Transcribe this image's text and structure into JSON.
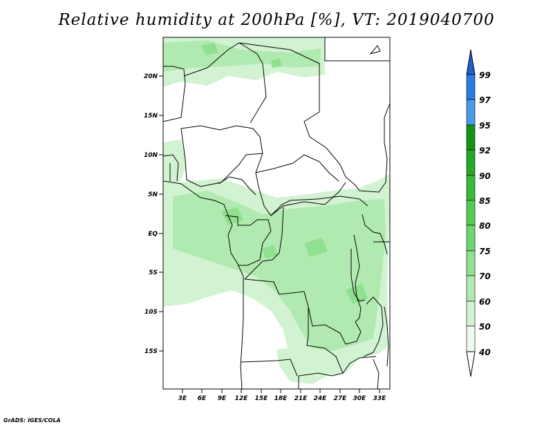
{
  "title": "Relative humidity at 200hPa [%], VT: 2019040700",
  "credit": "GrADS: IGES/COLA",
  "map": {
    "lat_labels": [
      "20N",
      "15N",
      "10N",
      "5N",
      "EQ",
      "5S",
      "10S",
      "15S"
    ],
    "lon_labels": [
      "3E",
      "6E",
      "9E",
      "12E",
      "15E",
      "18E",
      "21E",
      "24E",
      "27E",
      "30E",
      "33E"
    ],
    "lon_range_deg": [
      0.5,
      35.0
    ],
    "lat_range_deg": [
      -19.5,
      24.5
    ]
  },
  "colorbar": {
    "levels": [
      "99",
      "97",
      "95",
      "92",
      "90",
      "85",
      "80",
      "75",
      "70",
      "60",
      "50",
      "40"
    ],
    "colors": [
      "#1f5fd4",
      "#2b7be0",
      "#4a98e8",
      "#139513",
      "#25a825",
      "#39bb39",
      "#52cc52",
      "#6ed66e",
      "#8fe08f",
      "#b1eab1",
      "#d2f3d2",
      "#eefaee"
    ],
    "top_arrow_color": "#1f5fd4",
    "bottom_arrow_color": "#ffffff"
  }
}
